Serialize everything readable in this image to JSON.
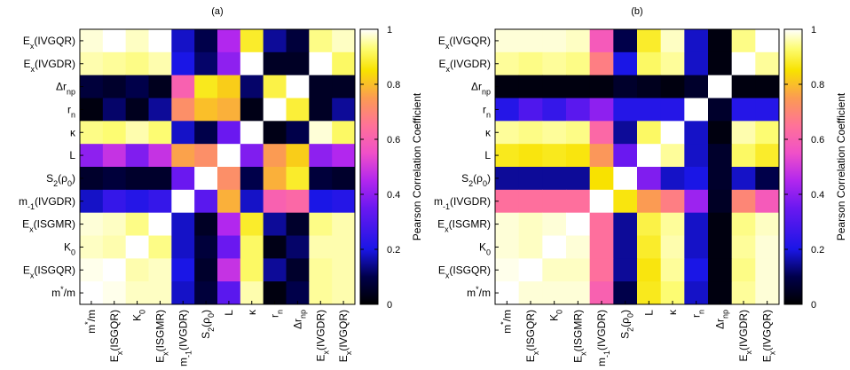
{
  "colorscale": {
    "stops": [
      {
        "v": 0.0,
        "color": "#000000"
      },
      {
        "v": 0.1,
        "color": "#00004a"
      },
      {
        "v": 0.2,
        "color": "#1a16e6"
      },
      {
        "v": 0.35,
        "color": "#6a18f0"
      },
      {
        "v": 0.45,
        "color": "#b227ee"
      },
      {
        "v": 0.55,
        "color": "#f050c8"
      },
      {
        "v": 0.65,
        "color": "#ff7298"
      },
      {
        "v": 0.75,
        "color": "#fb9b53"
      },
      {
        "v": 0.85,
        "color": "#f8e200"
      },
      {
        "v": 0.93,
        "color": "#fdfc72"
      },
      {
        "v": 1.0,
        "color": "#ffffff"
      }
    ]
  },
  "colorbar": {
    "label": "Pearson Correlation Coefficient",
    "ticks": [
      "0",
      "0.2",
      "0.4",
      "0.6",
      "0.8",
      "1"
    ],
    "range": [
      0,
      1
    ]
  },
  "chart_data": [
    {
      "type": "heatmap",
      "title": "(a)",
      "y_labels": [
        [
          "E",
          "x",
          "(IVGQR)"
        ],
        [
          "E",
          "x",
          "(IVGDR)"
        ],
        [
          "Δr",
          "np",
          ""
        ],
        [
          "r",
          "n",
          ""
        ],
        [
          "κ",
          "",
          ""
        ],
        [
          "L",
          "",
          ""
        ],
        [
          "S",
          "2",
          "(ρ0)"
        ],
        [
          "m",
          "-1",
          "(IVGDR)"
        ],
        [
          "E",
          "x",
          "(ISGMR)"
        ],
        [
          "K",
          "0",
          ""
        ],
        [
          "E",
          "x",
          "(ISGQR)"
        ],
        [
          "m*/m",
          "",
          ""
        ]
      ],
      "x_labels": [
        [
          "m*/m",
          "",
          ""
        ],
        [
          "E",
          "x",
          "(ISGQR)"
        ],
        [
          "K",
          "0",
          ""
        ],
        [
          "E",
          "x",
          "(ISGMR)"
        ],
        [
          "m",
          "-1",
          "(IVGDR)"
        ],
        [
          "S",
          "2",
          "(ρ0)"
        ],
        [
          "L",
          "",
          ""
        ],
        [
          "κ",
          "",
          ""
        ],
        [
          "r",
          "n",
          ""
        ],
        [
          "Δr",
          "np",
          ""
        ],
        [
          "E",
          "x",
          "(IVGDR)"
        ],
        [
          "E",
          "x",
          "(IVGQR)"
        ]
      ],
      "values": [
        [
          0.98,
          1.0,
          0.97,
          1.0,
          0.18,
          0.1,
          0.45,
          0.88,
          0.15,
          0.08,
          0.94,
          0.97
        ],
        [
          0.96,
          0.95,
          0.94,
          0.96,
          0.2,
          0.12,
          0.4,
          1.0,
          0.05,
          0.05,
          1.0,
          0.92
        ],
        [
          0.08,
          0.06,
          0.1,
          0.04,
          0.6,
          0.87,
          0.82,
          0.12,
          0.9,
          1.0,
          0.05,
          0.05
        ],
        [
          0.02,
          0.12,
          0.04,
          0.15,
          0.72,
          0.8,
          0.78,
          0.03,
          1.0,
          0.89,
          0.05,
          0.15
        ],
        [
          0.94,
          0.93,
          0.96,
          0.93,
          0.18,
          0.1,
          0.35,
          1.0,
          0.03,
          0.1,
          0.98,
          0.92
        ],
        [
          0.4,
          0.48,
          0.38,
          0.48,
          0.76,
          0.72,
          1.0,
          0.38,
          0.75,
          0.82,
          0.4,
          0.45
        ],
        [
          0.06,
          0.08,
          0.06,
          0.06,
          0.35,
          1.0,
          0.72,
          0.1,
          0.78,
          0.88,
          0.08,
          0.06
        ],
        [
          0.18,
          0.25,
          0.22,
          0.25,
          1.0,
          0.32,
          0.78,
          0.18,
          0.6,
          0.62,
          0.2,
          0.22
        ],
        [
          0.98,
          0.97,
          0.94,
          1.0,
          0.18,
          0.05,
          0.45,
          0.88,
          0.15,
          0.06,
          0.94,
          0.96
        ],
        [
          0.97,
          0.96,
          1.0,
          0.94,
          0.18,
          0.08,
          0.35,
          0.92,
          0.03,
          0.12,
          0.96,
          0.96
        ],
        [
          0.99,
          1.0,
          0.96,
          0.97,
          0.2,
          0.06,
          0.48,
          0.92,
          0.15,
          0.06,
          0.95,
          0.96
        ],
        [
          1.0,
          0.99,
          0.97,
          0.97,
          0.18,
          0.08,
          0.32,
          0.96,
          0.02,
          0.1,
          0.95,
          0.96
        ]
      ]
    },
    {
      "type": "heatmap",
      "title": "(b)",
      "y_labels": [
        [
          "E",
          "x",
          "(IVGQR)"
        ],
        [
          "E",
          "x",
          "(IVGDR)"
        ],
        [
          "Δr",
          "np",
          ""
        ],
        [
          "r",
          "n",
          ""
        ],
        [
          "κ",
          "",
          ""
        ],
        [
          "L",
          "",
          ""
        ],
        [
          "S",
          "2",
          "(ρ0)"
        ],
        [
          "m",
          "-1",
          "(IVGDR)"
        ],
        [
          "E",
          "x",
          "(ISGMR)"
        ],
        [
          "K",
          "0",
          ""
        ],
        [
          "E",
          "x",
          "(ISGQR)"
        ],
        [
          "m*/m",
          "",
          ""
        ]
      ],
      "x_labels": [
        [
          "m*/m",
          "",
          ""
        ],
        [
          "E",
          "x",
          "(ISGQR)"
        ],
        [
          "K",
          "0",
          ""
        ],
        [
          "E",
          "x",
          "(ISGMR)"
        ],
        [
          "m",
          "-1",
          "(IVGDR)"
        ],
        [
          "S",
          "2",
          "(ρ0)"
        ],
        [
          "L",
          "",
          ""
        ],
        [
          "κ",
          "",
          ""
        ],
        [
          "r",
          "n",
          ""
        ],
        [
          "Δr",
          "np",
          ""
        ],
        [
          "E",
          "x",
          "(IVGDR)"
        ],
        [
          "E",
          "x",
          "(IVGQR)"
        ]
      ],
      "values": [
        [
          0.98,
          0.98,
          0.98,
          0.97,
          0.58,
          0.1,
          0.88,
          0.97,
          0.18,
          0.02,
          0.94,
          1.0
        ],
        [
          0.95,
          0.94,
          0.95,
          0.94,
          0.68,
          0.2,
          0.92,
          0.95,
          0.18,
          0.02,
          1.0,
          0.95
        ],
        [
          0.02,
          0.02,
          0.02,
          0.02,
          0.02,
          0.06,
          0.04,
          0.02,
          0.06,
          1.0,
          0.02,
          0.02
        ],
        [
          0.22,
          0.3,
          0.25,
          0.32,
          0.4,
          0.22,
          0.22,
          0.22,
          1.0,
          0.06,
          0.22,
          0.22
        ],
        [
          0.95,
          0.94,
          0.95,
          0.94,
          0.62,
          0.15,
          0.92,
          1.0,
          0.18,
          0.02,
          0.96,
          0.93
        ],
        [
          0.87,
          0.86,
          0.87,
          0.86,
          0.74,
          0.35,
          1.0,
          0.95,
          0.18,
          0.06,
          0.92,
          0.88
        ],
        [
          0.15,
          0.15,
          0.15,
          0.15,
          0.85,
          1.0,
          0.38,
          0.18,
          0.2,
          0.06,
          0.18,
          0.1
        ],
        [
          0.64,
          0.64,
          0.64,
          0.64,
          1.0,
          0.86,
          0.75,
          0.68,
          0.42,
          0.05,
          0.7,
          0.58
        ],
        [
          0.98,
          0.97,
          0.98,
          1.0,
          0.64,
          0.15,
          0.9,
          0.95,
          0.18,
          0.02,
          0.94,
          0.97
        ],
        [
          0.98,
          0.97,
          1.0,
          0.98,
          0.64,
          0.15,
          0.88,
          0.96,
          0.18,
          0.02,
          0.95,
          0.98
        ],
        [
          0.99,
          1.0,
          0.97,
          0.97,
          0.64,
          0.15,
          0.86,
          0.95,
          0.2,
          0.02,
          0.94,
          0.98
        ],
        [
          1.0,
          0.98,
          0.98,
          0.98,
          0.6,
          0.1,
          0.87,
          0.93,
          0.18,
          0.02,
          0.95,
          0.98
        ]
      ]
    }
  ]
}
